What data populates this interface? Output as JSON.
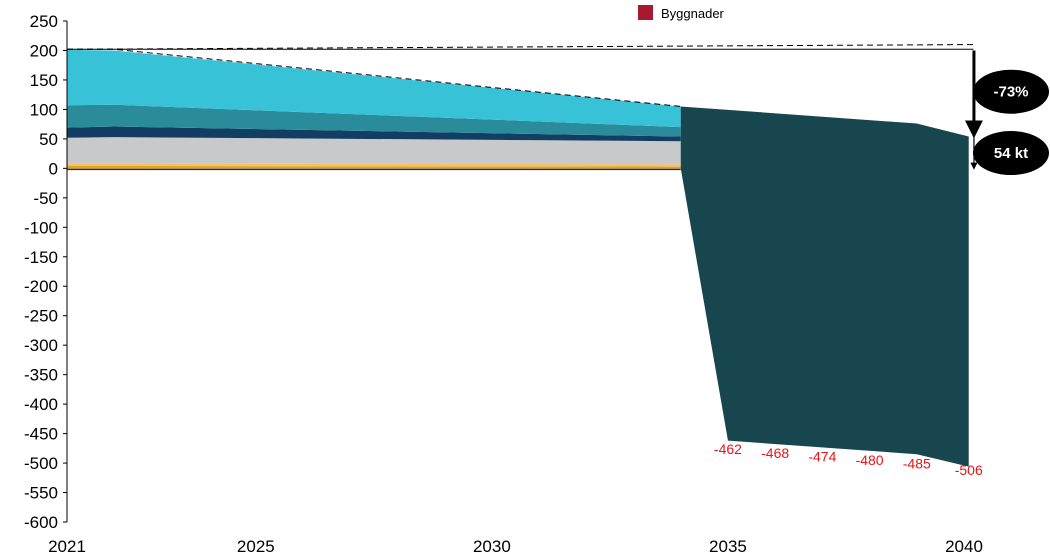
{
  "chart_data": {
    "type": "area",
    "x": [
      2021,
      2022,
      2034,
      2035,
      2039,
      2040
    ],
    "x_ticks": [
      "2021",
      "2025",
      "2030",
      "2035",
      "2040"
    ],
    "x_tick_values": [
      2021,
      2025,
      2030,
      2035,
      2040
    ],
    "y_ticks": [
      "250",
      "200",
      "150",
      "100",
      "50",
      "0",
      "-50",
      "-100",
      "-150",
      "-200",
      "-250",
      "-300",
      "-350",
      "-400",
      "-450",
      "-500",
      "-550",
      "-600"
    ],
    "y_tick_values": [
      250,
      200,
      150,
      100,
      50,
      0,
      -50,
      -100,
      -150,
      -200,
      -250,
      -300,
      -350,
      -400,
      -450,
      -500,
      -550,
      -600
    ],
    "ylim": [
      -600,
      250
    ],
    "xlim": [
      2021,
      2041
    ],
    "legend": [
      {
        "label": "Byggnader",
        "color": "#a6192e"
      }
    ],
    "stacked_layers": [
      {
        "color": "#e8a317",
        "values_2021": 4,
        "values_2022": 4,
        "values_2034": 3
      },
      {
        "color": "#f3c26b",
        "values_2021": 4,
        "values_2022": 4,
        "values_2034": 4
      },
      {
        "color": "#c8c9cb",
        "values_2021": 44,
        "values_2022": 45,
        "values_2034": 39
      },
      {
        "color": "#123e63",
        "values_2021": 17,
        "values_2022": 18,
        "values_2034": 8
      },
      {
        "color": "#2a8c9b",
        "values_2021": 38,
        "values_2022": 37,
        "values_2034": 16
      },
      {
        "color": "#38c2d8",
        "values_2021": 94,
        "values_2022": 92,
        "values_2034": 35
      }
    ],
    "large_series": {
      "color": "#18464f",
      "upper": {
        "x": [
          2034,
          2039,
          2040.1
        ],
        "y": [
          105,
          76,
          54
        ]
      },
      "lower": {
        "x": [
          2034,
          2035,
          2039,
          2040.1
        ],
        "y": [
          0,
          -462,
          -485,
          -506
        ]
      }
    },
    "baseline_dashed": {
      "x": [
        2021,
        2022,
        2034
      ],
      "y": [
        202,
        202,
        105
      ]
    },
    "target_dashed": {
      "x": [
        2021,
        2040.2
      ],
      "y": [
        202,
        210
      ]
    },
    "target_solid_y": 202,
    "data_labels": [
      {
        "text": "-462",
        "x": 2035,
        "y": -485
      },
      {
        "text": "-468",
        "x": 2036,
        "y": -491
      },
      {
        "text": "-474",
        "x": 2037,
        "y": -497
      },
      {
        "text": "-480",
        "x": 2038,
        "y": -503
      },
      {
        "text": "-485",
        "x": 2039,
        "y": -509
      },
      {
        "text": "-506",
        "x": 2040.1,
        "y": -520
      }
    ],
    "annotations": [
      {
        "text": "-73%",
        "arrow_from": 200,
        "arrow_to": 57
      },
      {
        "text": "54 kt",
        "arrow_from": 54,
        "arrow_to": 0
      }
    ]
  }
}
